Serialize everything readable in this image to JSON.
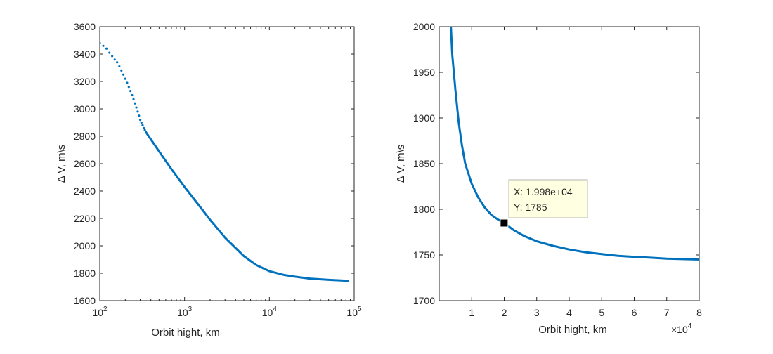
{
  "figure": {
    "background": "#ffffff"
  },
  "chart_data": [
    {
      "type": "line",
      "xscale": "log",
      "xlim": [
        100,
        100000
      ],
      "ylim": [
        1600,
        3600
      ],
      "xlabel": "Orbit hight, km",
      "ylabel": "Δ V, m\\s",
      "xticks": [
        100,
        1000,
        10000,
        100000
      ],
      "xtick_labels": [
        {
          "base": "10",
          "exp": "2"
        },
        {
          "base": "10",
          "exp": "3"
        },
        {
          "base": "10",
          "exp": "4"
        },
        {
          "base": "10",
          "exp": "5"
        }
      ],
      "yticks": [
        1600,
        1800,
        2000,
        2200,
        2400,
        2600,
        2800,
        3000,
        3200,
        3400,
        3600
      ],
      "ytick_labels": [
        "1600",
        "1800",
        "2000",
        "2200",
        "2400",
        "2600",
        "2800",
        "3000",
        "3200",
        "3400",
        "3600"
      ],
      "grid": false,
      "line_color": "#0072bd",
      "series": [
        {
          "style": "dotted",
          "x": [
            100,
            110,
            120,
            130,
            140,
            150,
            160,
            170,
            180,
            190,
            200,
            210,
            220,
            230,
            240,
            250,
            260,
            270,
            280,
            290,
            300,
            310,
            320,
            330,
            340,
            350
          ],
          "y": [
            3480,
            3460,
            3440,
            3410,
            3385,
            3360,
            3340,
            3310,
            3280,
            3250,
            3220,
            3190,
            3160,
            3130,
            3100,
            3070,
            3040,
            3010,
            2980,
            2950,
            2920,
            2900,
            2880,
            2860,
            2845,
            2830
          ]
        },
        {
          "style": "solid",
          "x": [
            350,
            500,
            700,
            1000,
            1500,
            2000,
            3000,
            5000,
            7000,
            10000,
            15000,
            20000,
            30000,
            50000,
            85000
          ],
          "y": [
            2830,
            2690,
            2560,
            2430,
            2290,
            2190,
            2060,
            1925,
            1860,
            1815,
            1787,
            1775,
            1761,
            1752,
            1745
          ]
        }
      ]
    },
    {
      "type": "line",
      "xscale": "linear",
      "xlim": [
        0,
        80000
      ],
      "ylim": [
        1700,
        2000
      ],
      "xlabel": "Orbit hight, km",
      "ylabel": "Δ V, m\\s",
      "xticks": [
        10000,
        20000,
        30000,
        40000,
        50000,
        60000,
        70000,
        80000
      ],
      "xtick_labels": [
        "1",
        "2",
        "3",
        "4",
        "5",
        "6",
        "7",
        "8"
      ],
      "x_exponent": {
        "base": "×10",
        "exp": "4"
      },
      "yticks": [
        1700,
        1750,
        1800,
        1850,
        1900,
        1950,
        2000
      ],
      "ytick_labels": [
        "1700",
        "1750",
        "1800",
        "1850",
        "1900",
        "1950",
        "2000"
      ],
      "grid": false,
      "line_color": "#0072bd",
      "series": [
        {
          "style": "solid",
          "x": [
            3600,
            4000,
            5000,
            6000,
            7000,
            8000,
            10000,
            12000,
            14000,
            16000,
            18000,
            20000,
            23000,
            26000,
            30000,
            35000,
            40000,
            45000,
            50000,
            55000,
            60000,
            65000,
            70000,
            75000,
            80000
          ],
          "y": [
            2000,
            1970,
            1930,
            1895,
            1870,
            1850,
            1828,
            1813,
            1802,
            1794,
            1789,
            1785,
            1777,
            1771,
            1765,
            1760,
            1756,
            1753,
            1751,
            1749,
            1748,
            1747,
            1746,
            1745.5,
            1745
          ]
        }
      ],
      "datatip": {
        "x": 19980,
        "y": 1785,
        "x_text": "X: 1.998e+04",
        "y_text": "Y: 1785",
        "box_color": "#ffffe1"
      }
    }
  ]
}
